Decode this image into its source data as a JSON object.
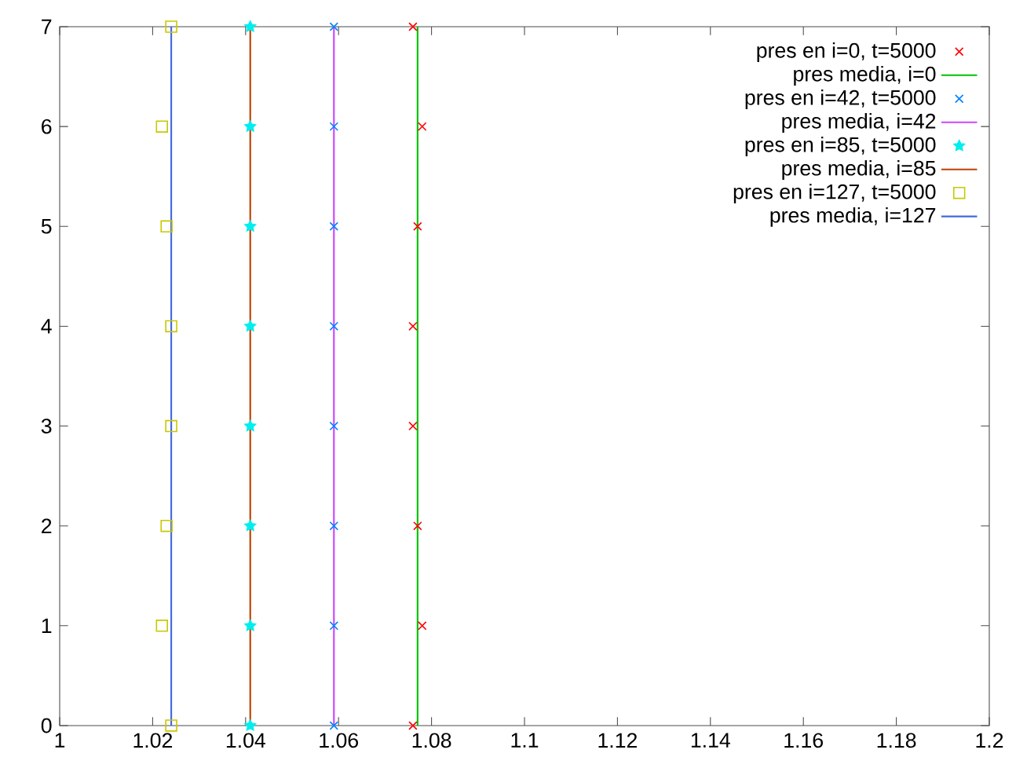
{
  "chart_data": {
    "type": "scatter",
    "xlim": [
      1,
      1.2
    ],
    "ylim": [
      0,
      7
    ],
    "xticks": [
      1,
      1.02,
      1.04,
      1.06,
      1.08,
      1.1,
      1.12,
      1.14,
      1.16,
      1.18,
      1.2
    ],
    "yticks": [
      0,
      1,
      2,
      3,
      4,
      5,
      6,
      7
    ],
    "legend": "top right",
    "grid": false,
    "series": [
      {
        "name": "pres en i=0, t=5000",
        "marker": "cross",
        "color": "#ff0000",
        "x": [
          1.076,
          1.078,
          1.077,
          1.076,
          1.076,
          1.077,
          1.078,
          1.076
        ],
        "values": [
          0,
          1,
          2,
          3,
          4,
          5,
          6,
          7
        ]
      },
      {
        "name": "pres media, i=0",
        "type": "line",
        "marker": "none",
        "color": "#00c000",
        "x": [
          1.077,
          1.077
        ],
        "values": [
          0,
          7
        ]
      },
      {
        "name": "pres en i=42, t=5000",
        "marker": "cross",
        "color": "#0080ff",
        "x": [
          1.059,
          1.059,
          1.059,
          1.059,
          1.059,
          1.059,
          1.059,
          1.059
        ],
        "values": [
          0,
          1,
          2,
          3,
          4,
          5,
          6,
          7
        ]
      },
      {
        "name": "pres media, i=42",
        "type": "line",
        "marker": "none",
        "color": "#cc44ff",
        "x": [
          1.059,
          1.059
        ],
        "values": [
          0,
          7
        ]
      },
      {
        "name": "pres en i=85, t=5000",
        "marker": "star",
        "color": "#00eeee",
        "x": [
          1.041,
          1.041,
          1.041,
          1.041,
          1.041,
          1.041,
          1.041,
          1.041
        ],
        "values": [
          0,
          1,
          2,
          3,
          4,
          5,
          6,
          7
        ]
      },
      {
        "name": "pres media, i=85",
        "type": "line",
        "marker": "none",
        "color": "#c04000",
        "x": [
          1.041,
          1.041
        ],
        "values": [
          0,
          7
        ]
      },
      {
        "name": "pres en i=127, t=5000",
        "marker": "square",
        "color": "#c8c800",
        "x": [
          1.024,
          1.022,
          1.023,
          1.024,
          1.024,
          1.023,
          1.022,
          1.024
        ],
        "values": [
          0,
          1,
          2,
          3,
          4,
          5,
          6,
          7
        ]
      },
      {
        "name": "pres media, i=127",
        "type": "line",
        "marker": "none",
        "color": "#4169e1",
        "x": [
          1.024,
          1.024
        ],
        "values": [
          0,
          7
        ]
      }
    ]
  }
}
